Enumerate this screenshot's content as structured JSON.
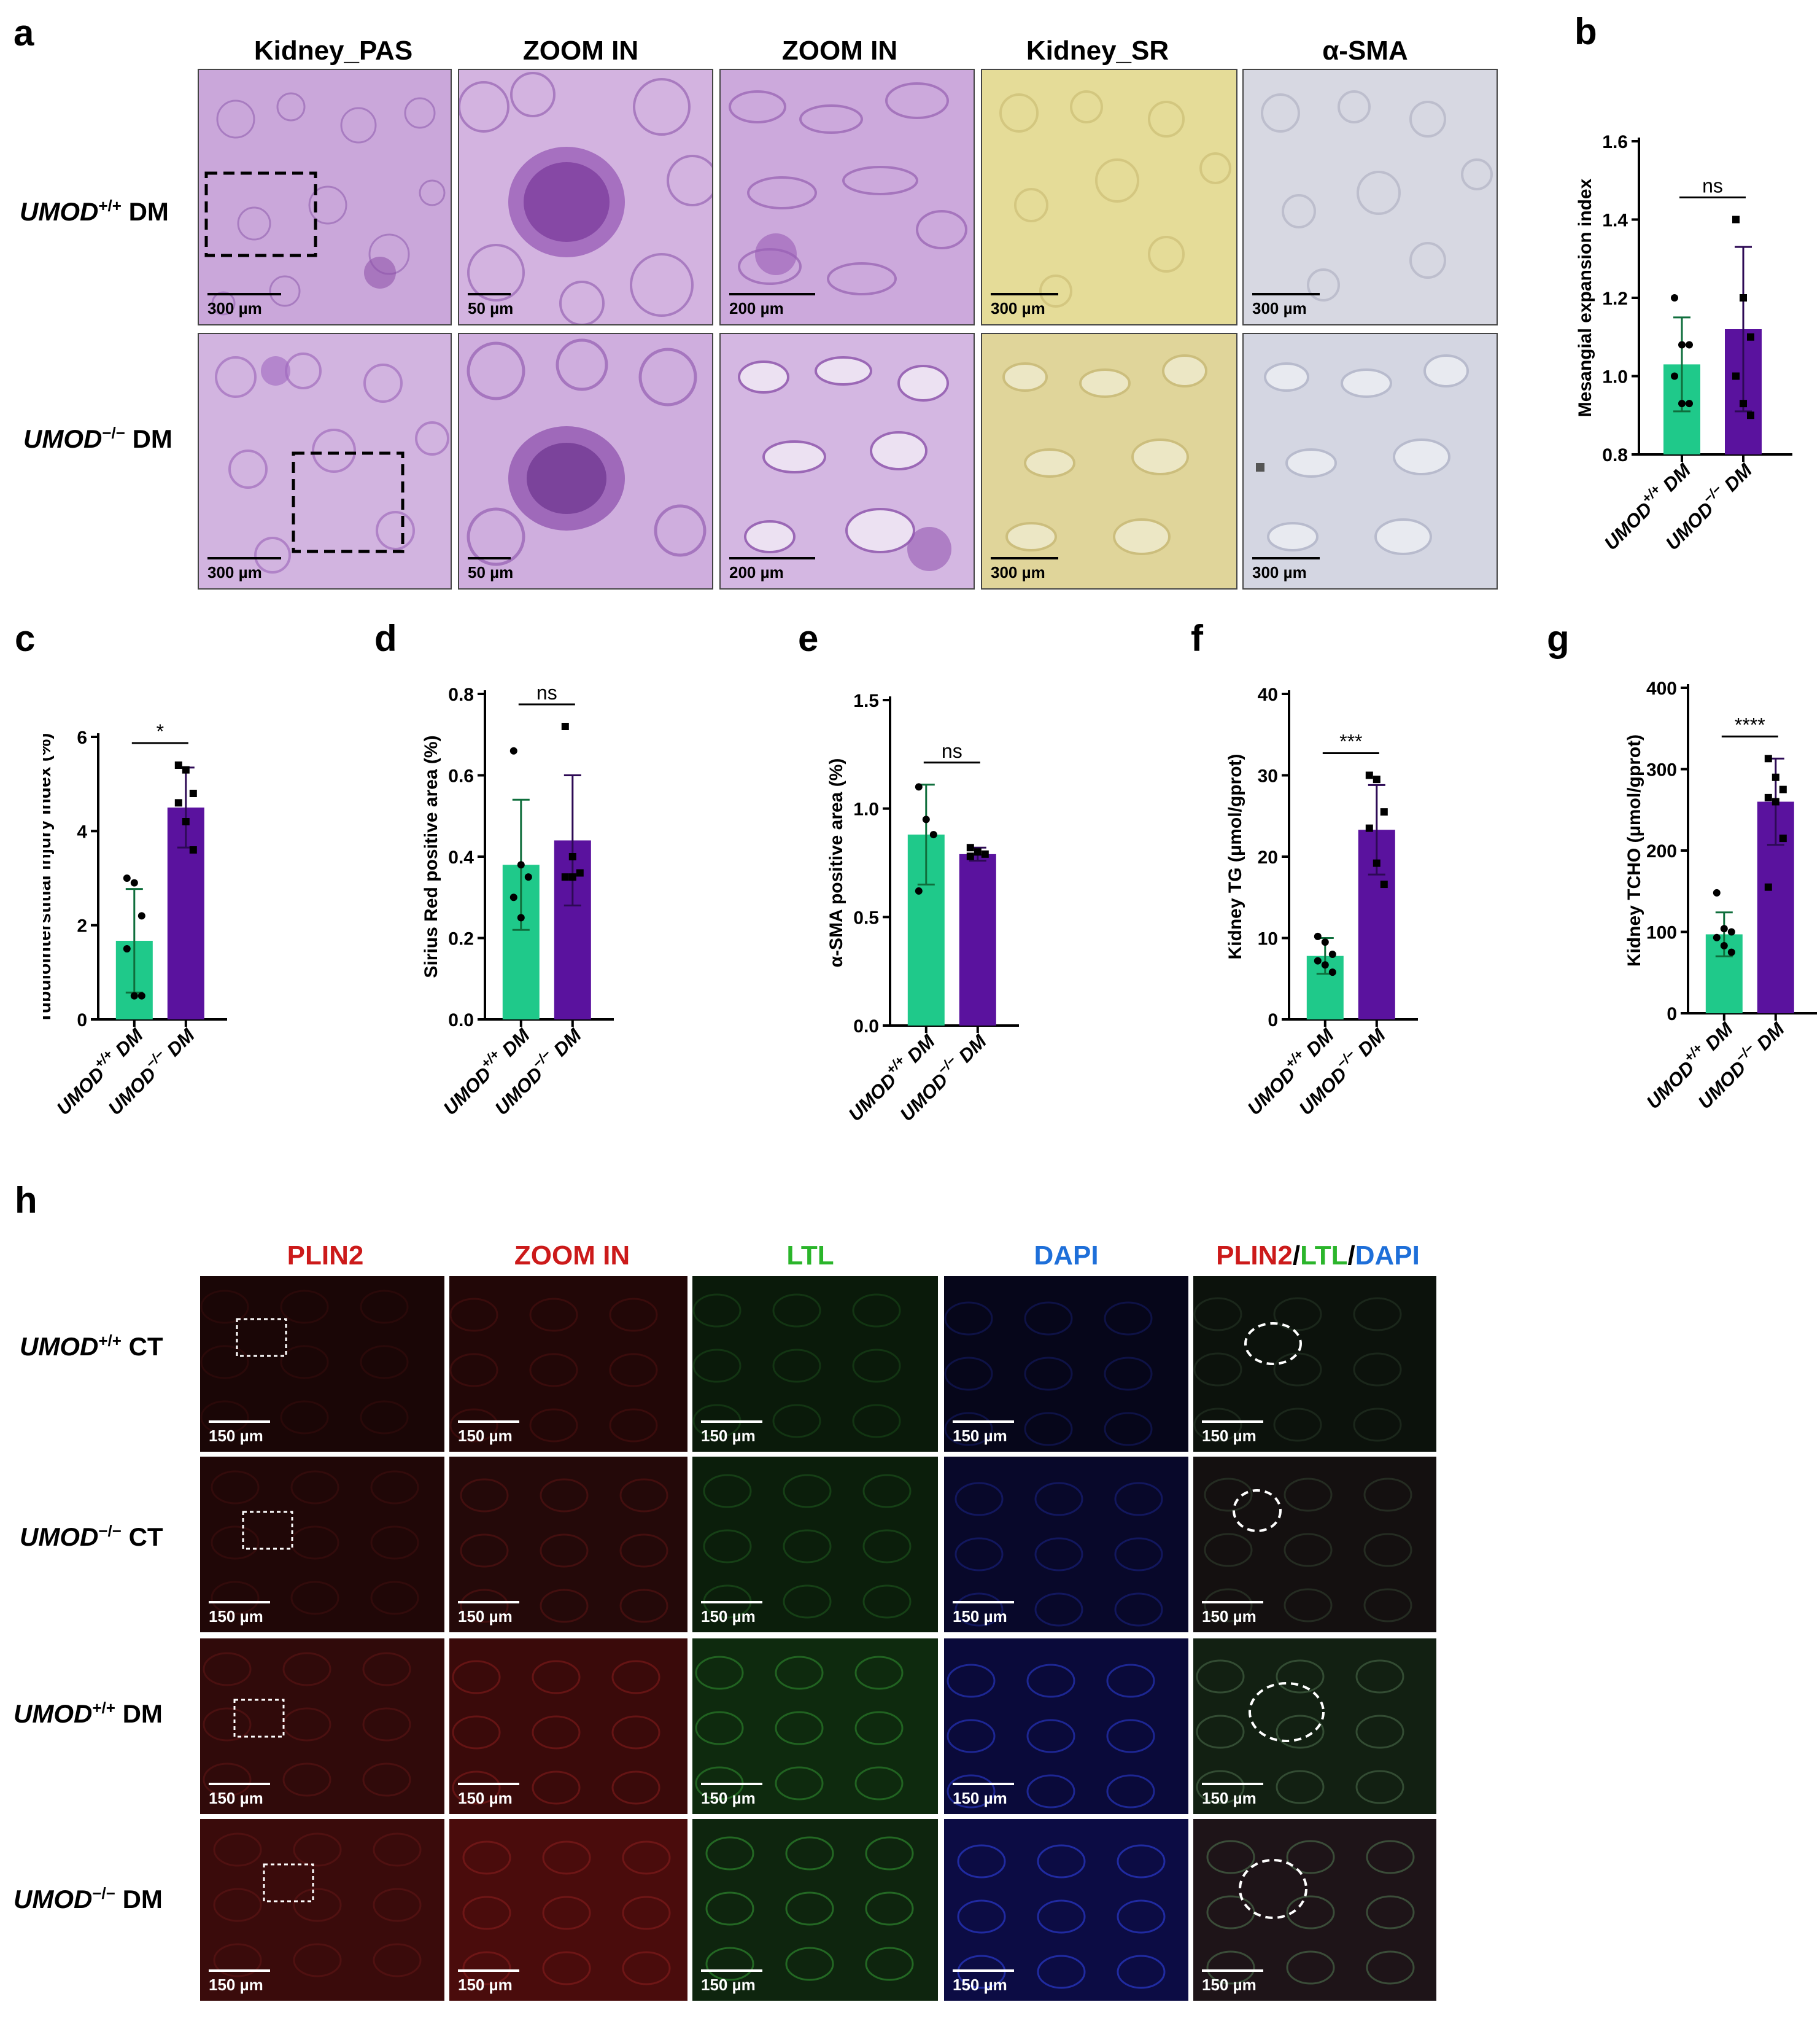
{
  "panel_letters": {
    "a": "a",
    "b": "b",
    "c": "c",
    "d": "d",
    "e": "e",
    "f": "f",
    "g": "g",
    "h": "h"
  },
  "section_a": {
    "columns": [
      "Kidney_PAS",
      "ZOOM IN",
      "ZOOM IN",
      "Kidney_SR",
      "α-SMA"
    ],
    "rows": [
      {
        "gene": "UMOD",
        "sup": "+/+",
        "group": " DM"
      },
      {
        "gene": "UMOD",
        "sup": "−/−",
        "group": " DM"
      }
    ],
    "scalebars": [
      [
        "300 µm",
        "50 µm",
        "200 µm",
        "300 µm",
        "300 µm"
      ],
      [
        "300 µm",
        "50 µm",
        "200 µm",
        "300 µm",
        "300 µm"
      ]
    ]
  },
  "section_h": {
    "columns": [
      {
        "parts": [
          {
            "text": "PLIN2",
            "color": "#cc1a1a"
          }
        ]
      },
      {
        "parts": [
          {
            "text": "ZOOM IN",
            "color": "#cc1a1a"
          }
        ]
      },
      {
        "parts": [
          {
            "text": "LTL",
            "color": "#2bb52b"
          }
        ]
      },
      {
        "parts": [
          {
            "text": "DAPI",
            "color": "#1e6fd9"
          }
        ]
      },
      {
        "parts": [
          {
            "text": "PLIN2",
            "color": "#cc1a1a"
          },
          {
            "text": "/",
            "color": "#000000"
          },
          {
            "text": "LTL",
            "color": "#2bb52b"
          },
          {
            "text": "/",
            "color": "#000000"
          },
          {
            "text": "DAPI",
            "color": "#1e6fd9"
          }
        ]
      }
    ],
    "rows": [
      {
        "gene": "UMOD",
        "sup": "+/+",
        "group": " CT"
      },
      {
        "gene": "UMOD",
        "sup": "−/−",
        "group": " CT"
      },
      {
        "gene": "UMOD",
        "sup": "+/+",
        "group": " DM"
      },
      {
        "gene": "UMOD",
        "sup": "−/−",
        "group": " DM"
      }
    ],
    "scalebar": "150 µm"
  },
  "colors": {
    "wt": "#1fc98a",
    "ko": "#5a129e",
    "wt_err": "#0f6e3c",
    "ko_err": "#2d0a55"
  },
  "chart_data": [
    {
      "id": "b",
      "type": "bar",
      "ylabel": "Mesangial expansion index",
      "ylim": [
        0.8,
        1.6
      ],
      "yticks": [
        "0.8",
        "1.0",
        "1.2",
        "1.4",
        "1.6"
      ],
      "categories": [
        "UMOD+/+ DM",
        "UMOD−/− DM"
      ],
      "values": [
        1.03,
        1.12
      ],
      "errors": [
        0.12,
        0.21
      ],
      "sig": "ns",
      "points": [
        [
          1.2,
          1.08,
          1.08,
          1.0,
          0.93,
          0.93
        ],
        [
          1.4,
          1.2,
          1.1,
          1.0,
          0.93,
          0.9
        ]
      ]
    },
    {
      "id": "c",
      "type": "bar",
      "ylabel": "Tubulointerstitial injury index (%)",
      "ylim": [
        0,
        6
      ],
      "yticks": [
        "0",
        "2",
        "4",
        "6"
      ],
      "categories": [
        "UMOD+/+ DM",
        "UMOD−/− DM"
      ],
      "values": [
        1.67,
        4.5
      ],
      "errors": [
        1.1,
        0.85
      ],
      "sig": "*",
      "points": [
        [
          3.0,
          2.9,
          2.2,
          1.5,
          0.5,
          0.5
        ],
        [
          5.4,
          5.3,
          4.8,
          4.6,
          4.2,
          3.6
        ]
      ]
    },
    {
      "id": "d",
      "type": "bar",
      "ylabel": "Sirius Red positive area (%)",
      "ylim": [
        0,
        0.8
      ],
      "yticks": [
        "0.0",
        "0.2",
        "0.4",
        "0.6",
        "0.8"
      ],
      "categories": [
        "UMOD+/+ DM",
        "UMOD−/− DM"
      ],
      "values": [
        0.38,
        0.44
      ],
      "errors": [
        0.16,
        0.16
      ],
      "sig": "ns",
      "points": [
        [
          0.66,
          0.38,
          0.35,
          0.3,
          0.25
        ],
        [
          0.72,
          0.4,
          0.36,
          0.35,
          0.35
        ]
      ]
    },
    {
      "id": "e",
      "type": "bar",
      "ylabel": "α-SMA positive area (%)",
      "ylim": [
        0,
        1.5
      ],
      "yticks": [
        "0.0",
        "0.5",
        "1.0",
        "1.5"
      ],
      "categories": [
        "UMOD+/+ DM",
        "UMOD−/− DM"
      ],
      "values": [
        0.88,
        0.79
      ],
      "errors": [
        0.23,
        0.03
      ],
      "sig": "ns",
      "points": [
        [
          1.1,
          0.95,
          0.88,
          0.62
        ],
        [
          0.82,
          0.8,
          0.79,
          0.78
        ]
      ]
    },
    {
      "id": "f",
      "type": "bar",
      "ylabel": "Kidney TG (μmol/gprot)",
      "ylim": [
        0,
        40
      ],
      "yticks": [
        "0",
        "10",
        "20",
        "30",
        "40"
      ],
      "categories": [
        "UMOD+/+ DM",
        "UMOD−/− DM"
      ],
      "values": [
        7.8,
        23.3
      ],
      "errors": [
        2.2,
        5.5
      ],
      "sig": "***",
      "points": [
        [
          10.2,
          9.5,
          8.0,
          7.2,
          6.7,
          5.8
        ],
        [
          30.0,
          29.5,
          25.5,
          23.5,
          19.2,
          16.6
        ]
      ]
    },
    {
      "id": "g",
      "type": "bar",
      "ylabel": "Kidney TCHO (μmol/gprot)",
      "ylim": [
        0,
        400
      ],
      "yticks": [
        "0",
        "100",
        "200",
        "300",
        "400"
      ],
      "categories": [
        "UMOD+/+ DM",
        "UMOD−/− DM"
      ],
      "values": [
        97,
        260
      ],
      "errors": [
        27,
        53
      ],
      "sig": "****",
      "points": [
        [
          148,
          104,
          100,
          93,
          83,
          75
        ],
        [
          313,
          290,
          275,
          265,
          260,
          215,
          155
        ]
      ]
    }
  ]
}
